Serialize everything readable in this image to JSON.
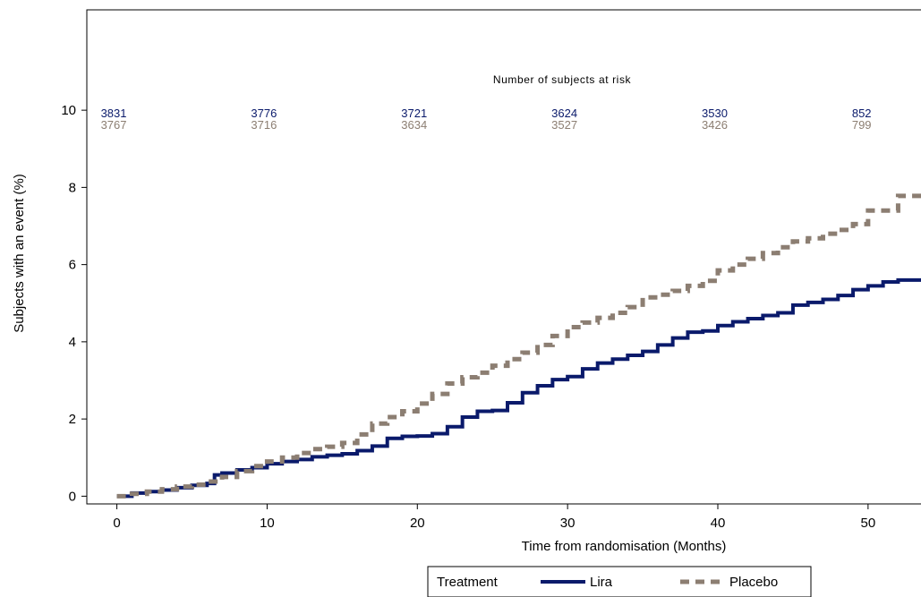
{
  "chart_data": {
    "type": "line",
    "xlabel": "Time from randomisation (Months)",
    "ylabel": "Subjects with an event (%)",
    "xlim": [
      -2,
      54
    ],
    "ylim": [
      -0.2,
      12.6
    ],
    "xticks": [
      0,
      10,
      20,
      30,
      40,
      50
    ],
    "yticks": [
      0,
      2,
      4,
      6,
      8,
      10
    ],
    "grid": false,
    "legend": {
      "title": "Treatment",
      "position": "bottom",
      "entries": [
        "Lira",
        "Placebo"
      ]
    },
    "at_risk": {
      "title": "Number of subjects at risk",
      "times": [
        0,
        10,
        20,
        30,
        40,
        50
      ],
      "rows": [
        {
          "series": "Lira",
          "values": [
            "3831",
            "3776",
            "3721",
            "3624",
            "3530",
            "852"
          ]
        },
        {
          "series": "Placebo",
          "values": [
            "3767",
            "3716",
            "3634",
            "3527",
            "3426",
            "799"
          ]
        }
      ]
    },
    "series": [
      {
        "name": "Lira",
        "color": "#0a1a6b",
        "style": "solid",
        "x": [
          0,
          1,
          2,
          3,
          4,
          5,
          6,
          6.5,
          7,
          8,
          9,
          10,
          11,
          12,
          13,
          14,
          15,
          16,
          17,
          18,
          19,
          20,
          21,
          22,
          23,
          24,
          25,
          26,
          27,
          28,
          29,
          30,
          31,
          32,
          33,
          34,
          35,
          36,
          37,
          38,
          39,
          40,
          41,
          42,
          43,
          44,
          45,
          46,
          47,
          48,
          49,
          50,
          51,
          52,
          53,
          54
        ],
        "y": [
          0,
          0.08,
          0.12,
          0.16,
          0.22,
          0.28,
          0.33,
          0.55,
          0.6,
          0.68,
          0.74,
          0.84,
          0.9,
          0.95,
          1.02,
          1.06,
          1.1,
          1.18,
          1.3,
          1.5,
          1.55,
          1.56,
          1.62,
          1.8,
          2.05,
          2.2,
          2.22,
          2.42,
          2.68,
          2.86,
          3.02,
          3.1,
          3.3,
          3.45,
          3.55,
          3.65,
          3.75,
          3.92,
          4.1,
          4.25,
          4.28,
          4.42,
          4.52,
          4.6,
          4.68,
          4.75,
          4.95,
          5.02,
          5.1,
          5.2,
          5.35,
          5.45,
          5.55,
          5.6,
          5.6,
          5.8
        ]
      },
      {
        "name": "Placebo",
        "color": "#8c7e72",
        "style": "dashed",
        "x": [
          0,
          1,
          2,
          3,
          4,
          5,
          6,
          7,
          8,
          9,
          10,
          11,
          12,
          13,
          14,
          15,
          16,
          17,
          18,
          19,
          20,
          21,
          22,
          23,
          24,
          25,
          26,
          27,
          28,
          29,
          30,
          31,
          32,
          33,
          34,
          35,
          36,
          37,
          38,
          39,
          40,
          41,
          42,
          43,
          44,
          45,
          46,
          47,
          48,
          49,
          50,
          51,
          52,
          53,
          54
        ],
        "y": [
          0,
          0.06,
          0.12,
          0.18,
          0.25,
          0.3,
          0.38,
          0.5,
          0.65,
          0.78,
          0.9,
          1.0,
          1.12,
          1.22,
          1.28,
          1.38,
          1.6,
          1.88,
          2.05,
          2.2,
          2.4,
          2.65,
          2.92,
          3.08,
          3.2,
          3.38,
          3.55,
          3.72,
          3.92,
          4.15,
          4.38,
          4.5,
          4.62,
          4.75,
          4.9,
          5.15,
          5.22,
          5.32,
          5.45,
          5.58,
          5.85,
          6.0,
          6.15,
          6.3,
          6.45,
          6.6,
          6.68,
          6.8,
          6.9,
          7.05,
          7.4,
          7.4,
          7.78,
          7.78,
          7.78
        ]
      }
    ]
  }
}
